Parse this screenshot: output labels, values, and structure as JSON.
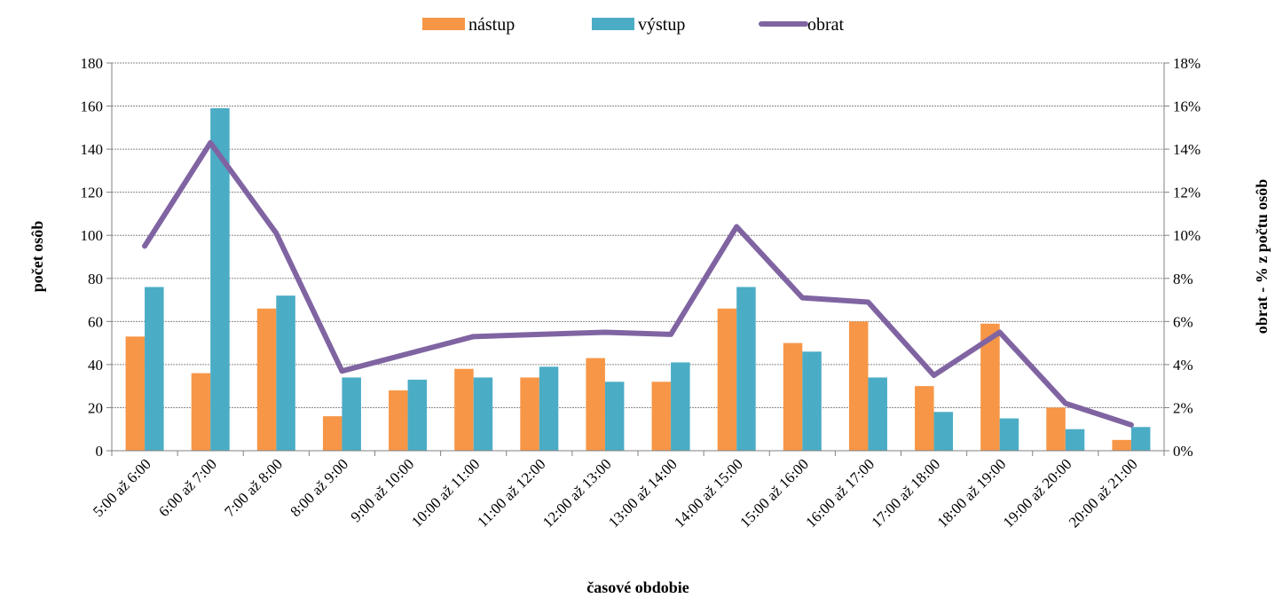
{
  "chart_data": {
    "type": "bar",
    "categories": [
      "5:00 až 6:00",
      "6:00 až 7:00",
      "7:00 až 8:00",
      "8:00 až 9:00",
      "9:00 až 10:00",
      "10:00 až 11:00",
      "11:00 až 12:00",
      "12:00 až 13:00",
      "13:00 až 14:00",
      "14:00 až 15:00",
      "15:00 až 16:00",
      "16:00 až 17:00",
      "17:00 až 18:00",
      "18:00 až 19:00",
      "19:00 až 20:00",
      "20:00 až 21:00"
    ],
    "series": [
      {
        "name": "nástup",
        "type": "bar",
        "axis": "left",
        "color": "#F79646",
        "values": [
          53,
          36,
          66,
          16,
          28,
          38,
          34,
          43,
          32,
          66,
          50,
          60,
          30,
          59,
          20,
          5
        ]
      },
      {
        "name": "výstup",
        "type": "bar",
        "axis": "left",
        "color": "#4BACC6",
        "values": [
          76,
          159,
          72,
          34,
          33,
          34,
          39,
          32,
          41,
          76,
          46,
          34,
          18,
          15,
          10,
          11
        ]
      },
      {
        "name": "obrat",
        "type": "line",
        "axis": "right",
        "color": "#8064A2",
        "values": [
          9.5,
          14.3,
          10.1,
          3.7,
          4.5,
          5.3,
          5.4,
          5.5,
          5.4,
          10.4,
          7.1,
          6.9,
          3.5,
          5.5,
          2.2,
          1.2
        ]
      }
    ],
    "xlabel": "časové obdobie",
    "ylabel": "počet osôb",
    "y2label": "obrat  - % z počtu osôb",
    "ylim": [
      0,
      180
    ],
    "yticks": [
      "0",
      "20",
      "40",
      "60",
      "80",
      "100",
      "120",
      "140",
      "160",
      "180"
    ],
    "y2lim": [
      0,
      18
    ],
    "y2ticks": [
      "0%",
      "2%",
      "4%",
      "6%",
      "8%",
      "10%",
      "12%",
      "14%",
      "16%",
      "18%"
    ],
    "grid": true,
    "legend": "top-center"
  }
}
